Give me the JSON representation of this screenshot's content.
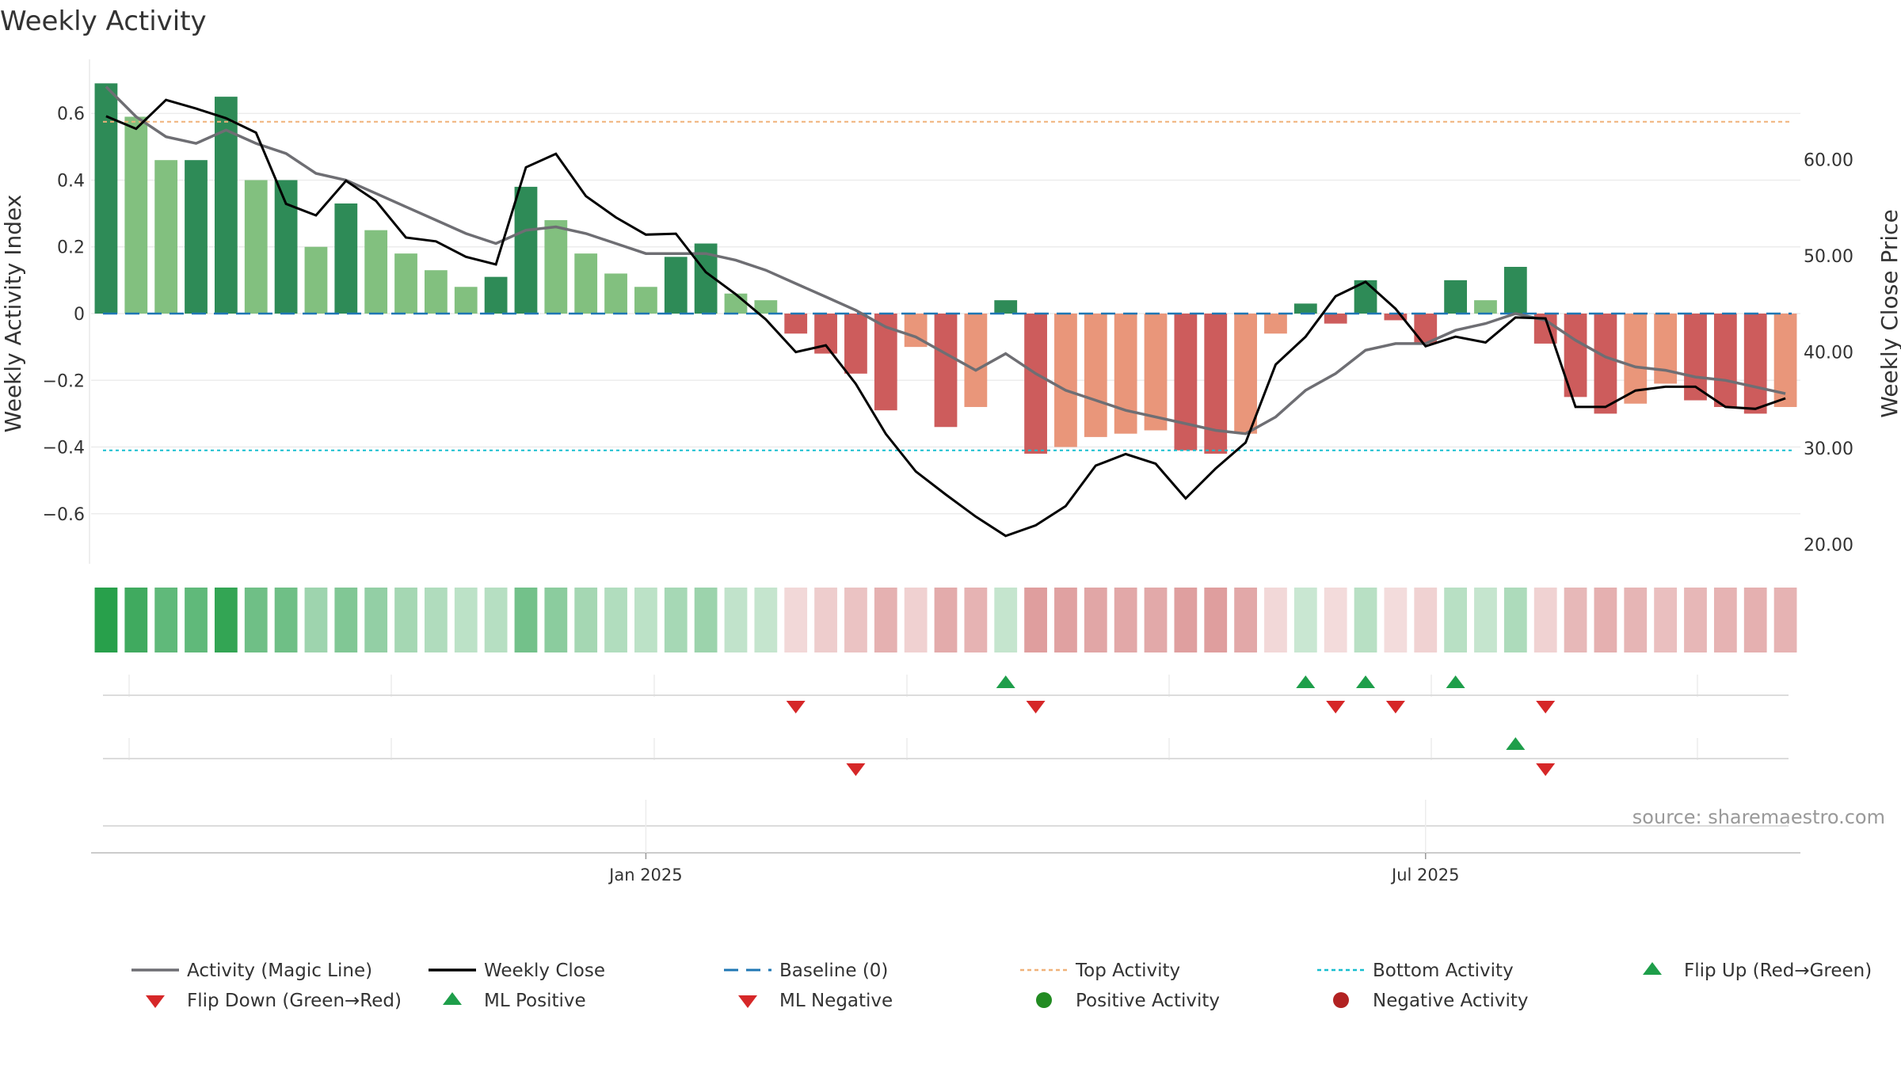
{
  "chart_data": {
    "type": "bar",
    "title": "Weekly Activity",
    "ylabel_left": "Weekly Activity Index",
    "ylabel_right": "Weekly Close Price",
    "source": "source: sharemaestro.com",
    "ylim_left": [
      -0.75,
      0.75
    ],
    "ylim_right": [
      18,
      70
    ],
    "left_ticks": [
      0.6,
      0.4,
      0.2,
      0,
      -0.2,
      -0.4,
      -0.6
    ],
    "left_tick_labels": [
      "0.6",
      "0.4",
      "0.2",
      "0",
      "−0.2",
      "−0.4",
      "−0.6"
    ],
    "right_ticks": [
      60,
      50,
      40,
      30,
      20
    ],
    "right_tick_labels": [
      "60.00",
      "50.00",
      "40.00",
      "30.00",
      "20.00"
    ],
    "x_labels": [
      {
        "week": 18.5,
        "label": "Jan 2025"
      },
      {
        "week": 44.5,
        "label": "Jul 2025"
      }
    ],
    "baseline": 0,
    "top_activity": 0.575,
    "bottom_activity": -0.41,
    "activity": [
      0.69,
      0.59,
      0.46,
      0.46,
      0.65,
      0.4,
      0.4,
      0.2,
      0.33,
      0.25,
      0.18,
      0.13,
      0.08,
      0.11,
      0.38,
      0.28,
      0.18,
      0.12,
      0.08,
      0.17,
      0.21,
      0.06,
      0.04,
      -0.06,
      -0.12,
      -0.18,
      -0.29,
      -0.1,
      -0.34,
      -0.28,
      0.04,
      -0.42,
      -0.4,
      -0.37,
      -0.36,
      -0.35,
      -0.41,
      -0.42,
      -0.36,
      -0.06,
      0.03,
      -0.03,
      0.1,
      -0.02,
      -0.09,
      0.1,
      0.04,
      0.14,
      -0.09,
      -0.25,
      -0.3,
      -0.27,
      -0.21,
      -0.26,
      -0.28,
      -0.3,
      -0.28
    ],
    "magic_line": [
      0.68,
      0.59,
      0.53,
      0.51,
      0.55,
      0.51,
      0.48,
      0.42,
      0.4,
      0.36,
      0.32,
      0.28,
      0.24,
      0.21,
      0.25,
      0.26,
      0.24,
      0.21,
      0.18,
      0.18,
      0.18,
      0.16,
      0.13,
      0.09,
      0.05,
      0.01,
      -0.04,
      -0.07,
      -0.12,
      -0.17,
      -0.12,
      -0.18,
      -0.23,
      -0.26,
      -0.29,
      -0.31,
      -0.33,
      -0.35,
      -0.36,
      -0.31,
      -0.23,
      -0.18,
      -0.11,
      -0.09,
      -0.09,
      -0.05,
      -0.03,
      0.0,
      -0.02,
      -0.08,
      -0.13,
      -0.16,
      -0.17,
      -0.19,
      -0.2,
      -0.22,
      -0.24
    ],
    "weekly_close": [
      64.5,
      63.2,
      66.2,
      65.3,
      64.3,
      62.8,
      55.4,
      54.2,
      57.8,
      55.7,
      51.9,
      51.5,
      49.9,
      49.1,
      59.2,
      60.6,
      56.2,
      54.0,
      52.2,
      52.3,
      48.3,
      46.0,
      43.4,
      40.0,
      40.7,
      36.7,
      31.5,
      27.6,
      25.2,
      22.9,
      20.9,
      22.0,
      24.0,
      28.2,
      29.4,
      28.4,
      24.8,
      27.9,
      30.6,
      38.7,
      41.6,
      45.8,
      47.3,
      44.5,
      40.6,
      41.6,
      41.0,
      43.6,
      43.5,
      34.3,
      34.3,
      36.0,
      36.4,
      36.4,
      34.3,
      34.1,
      35.2
    ],
    "flip_up": [
      30,
      40,
      42,
      45
    ],
    "flip_down": [
      23,
      31,
      41,
      43,
      48
    ],
    "ml_positive": [
      47
    ],
    "ml_negative": [
      25,
      48
    ],
    "legend": [
      {
        "label": "Activity (Magic Line)",
        "symbol": "line",
        "color": "#6e6e73"
      },
      {
        "label": "Weekly Close",
        "symbol": "line",
        "color": "#000000"
      },
      {
        "label": "Baseline (0)",
        "symbol": "dash",
        "color": "#1f77b4"
      },
      {
        "label": "Top Activity",
        "symbol": "dot",
        "color": "#f0b27a"
      },
      {
        "label": "Bottom Activity",
        "symbol": "dot",
        "color": "#17becf"
      },
      {
        "label": "Flip Up (Red→Green)",
        "symbol": "tri-up",
        "color": "#1e9e4a"
      },
      {
        "label": "Flip Down (Green→Red)",
        "symbol": "tri-down",
        "color": "#d62728"
      },
      {
        "label": "ML Positive",
        "symbol": "tri-up",
        "color": "#1e9e4a"
      },
      {
        "label": "ML Negative",
        "symbol": "tri-down",
        "color": "#d62728"
      },
      {
        "label": "Positive Activity",
        "symbol": "circle",
        "color": "#228b22"
      },
      {
        "label": "Negative Activity",
        "symbol": "circle",
        "color": "#b22222"
      }
    ]
  }
}
